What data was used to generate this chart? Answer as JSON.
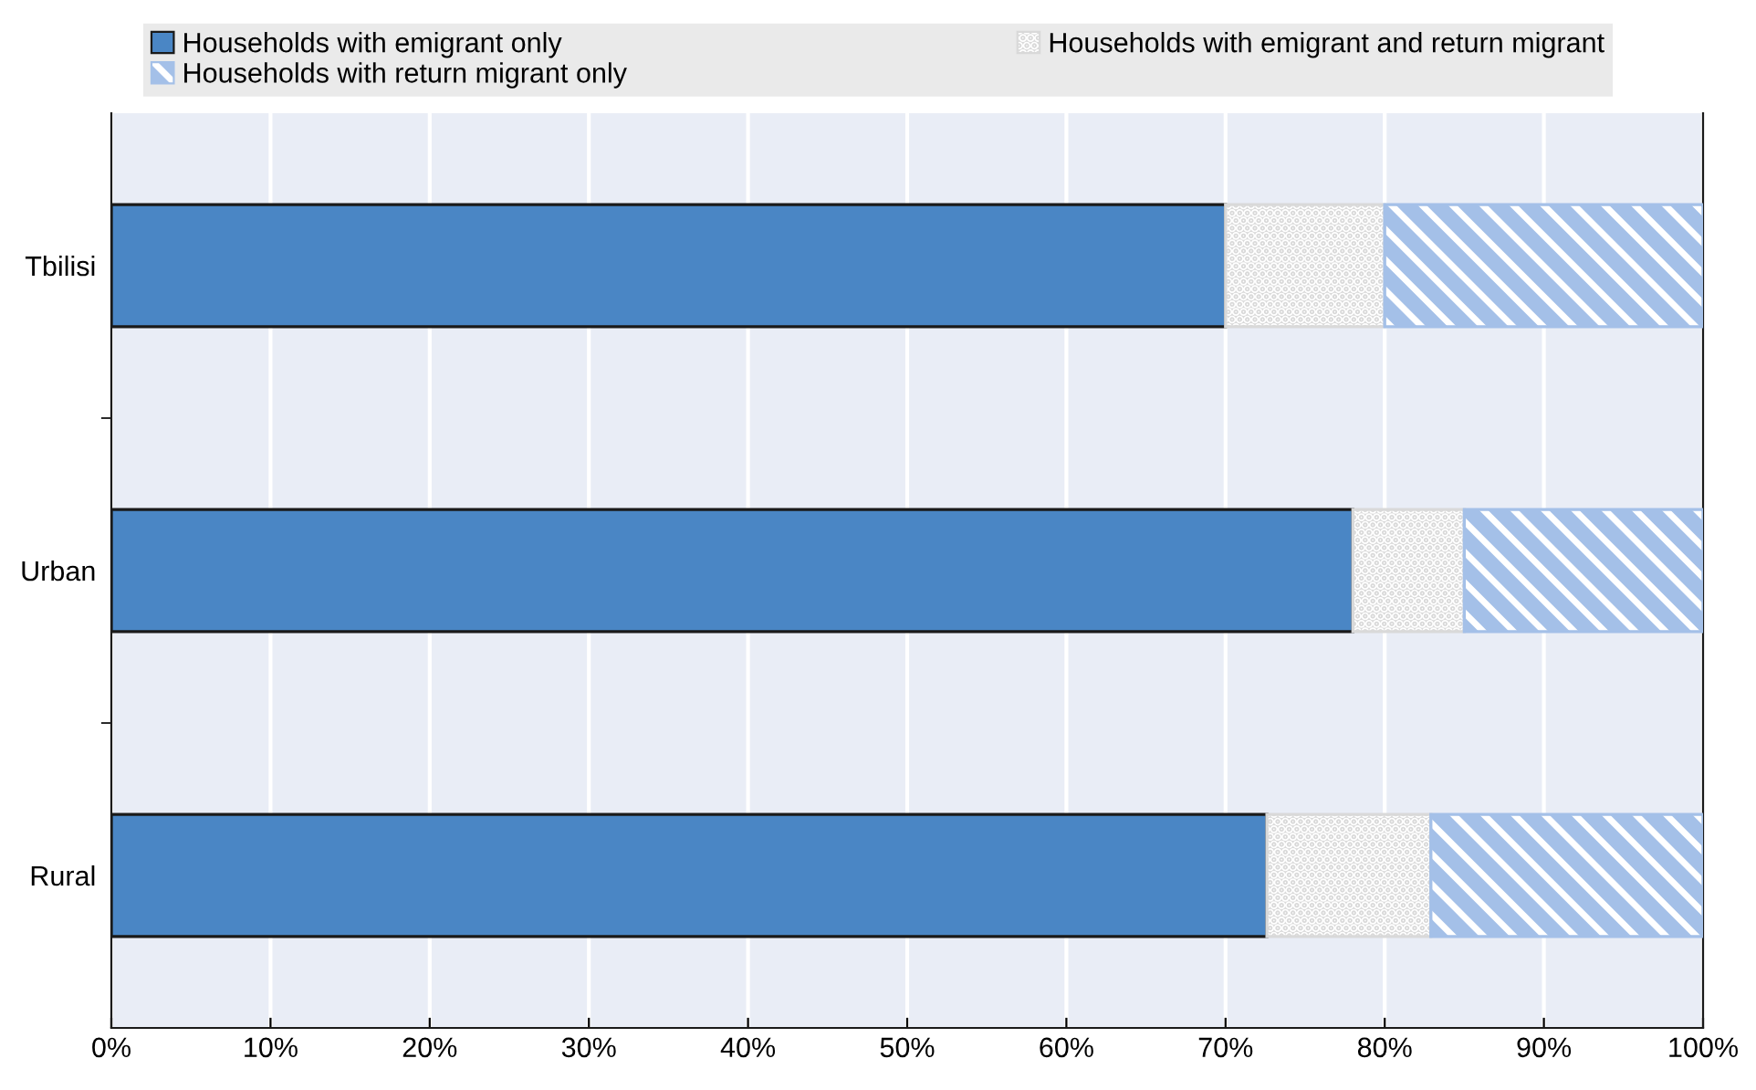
{
  "chart_data": {
    "type": "bar",
    "orientation": "horizontal",
    "stacked": true,
    "categories": [
      "Tbilisi",
      "Urban",
      "Rural"
    ],
    "series": [
      {
        "name": "Households with emigrant only",
        "color": "#4a86c5",
        "values": [
          70,
          78,
          72.6
        ]
      },
      {
        "name": "Households with emigrant and return migrant",
        "color": "#d9d9d9",
        "values": [
          10,
          7,
          10.3
        ]
      },
      {
        "name": "Households with return migrant only",
        "color": "#a4c0e8",
        "values": [
          20,
          15,
          17.1
        ]
      }
    ],
    "xlim": [
      0,
      100
    ],
    "xticks": [
      {
        "value": 0,
        "label": "0%"
      },
      {
        "value": 10,
        "label": "10%"
      },
      {
        "value": 20,
        "label": "20%"
      },
      {
        "value": 30,
        "label": "30%"
      },
      {
        "value": 40,
        "label": "40%"
      },
      {
        "value": 50,
        "label": "50%"
      },
      {
        "value": 60,
        "label": "60%"
      },
      {
        "value": 70,
        "label": "70%"
      },
      {
        "value": 80,
        "label": "80%"
      },
      {
        "value": 90,
        "label": "90%"
      },
      {
        "value": 100,
        "label": "100%"
      }
    ],
    "grid": "x",
    "legend": "top"
  }
}
